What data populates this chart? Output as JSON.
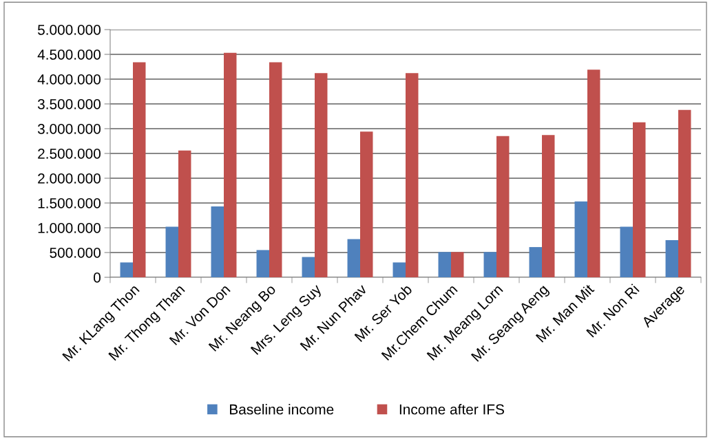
{
  "chart_data": {
    "type": "bar",
    "categories": [
      "Mr. KLang Thon",
      "Mr. Thong Than",
      "Mr. Von Don",
      "Mr. Neang Bo",
      "Mrs. Leng Suy",
      "Mr. Nun Phav",
      "Mr. Ser Yob",
      "Mr.Chem Chum",
      "Mr. Meang Lorn",
      "Mr. Seang Aeng",
      "Mr. Man Mit",
      "Mr. Non Ri",
      "Average"
    ],
    "series": [
      {
        "name": "Baseline income",
        "color": "#4f81bd",
        "values": [
          300000,
          1020000,
          1430000,
          550000,
          410000,
          770000,
          300000,
          510000,
          510000,
          610000,
          1530000,
          1020000,
          750000
        ]
      },
      {
        "name": "Income after IFS",
        "color": "#c0504d",
        "values": [
          4340000,
          2560000,
          4530000,
          4340000,
          4120000,
          2940000,
          4120000,
          510000,
          2850000,
          2870000,
          4190000,
          3130000,
          3380000
        ]
      }
    ],
    "ylim": [
      0,
      5000000
    ],
    "yticks": [
      {
        "value": 0,
        "label": "0"
      },
      {
        "value": 500000,
        "label": "500.000"
      },
      {
        "value": 1000000,
        "label": "1.000.000"
      },
      {
        "value": 1500000,
        "label": "1.500.000"
      },
      {
        "value": 2000000,
        "label": "2.000.000"
      },
      {
        "value": 2500000,
        "label": "2.500.000"
      },
      {
        "value": 3000000,
        "label": "3.000.000"
      },
      {
        "value": 3500000,
        "label": "3.500.000"
      },
      {
        "value": 4000000,
        "label": "4.000.000"
      },
      {
        "value": 4500000,
        "label": "4.500.000"
      },
      {
        "value": 5000000,
        "label": "5.000.000"
      }
    ],
    "grid": "y",
    "legend": "bottom"
  }
}
